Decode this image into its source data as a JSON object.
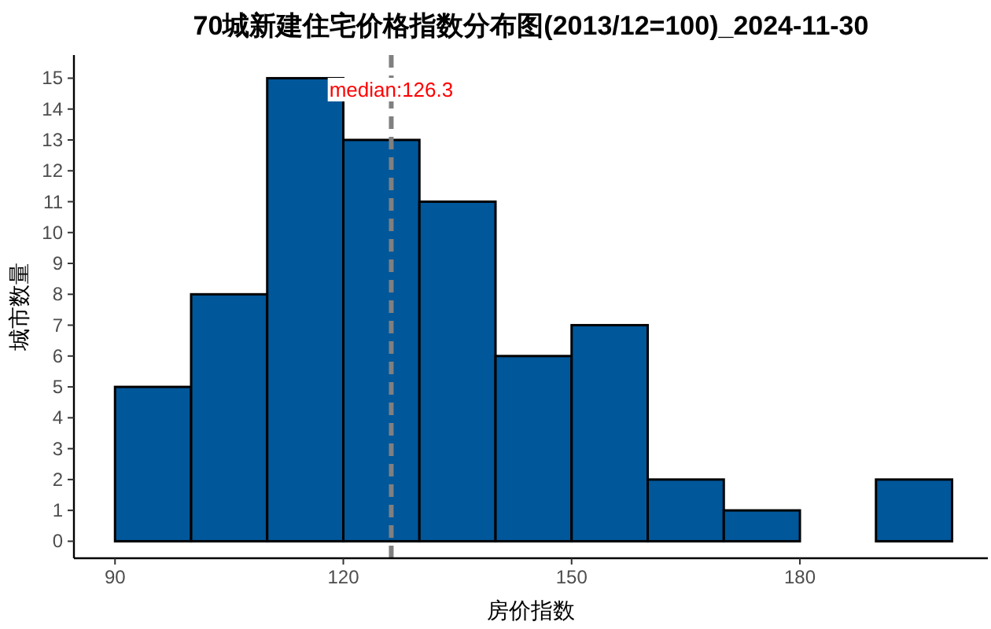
{
  "chart_data": {
    "type": "histogram",
    "title": "70城新建住宅价格指数分布图(2013/12=100)_2024-11-30",
    "xlabel": "房价指数",
    "ylabel": "城市数量",
    "bins": [
      90,
      100,
      110,
      120,
      130,
      140,
      150,
      160,
      170,
      180,
      190,
      200
    ],
    "values": [
      5,
      8,
      15,
      13,
      11,
      6,
      7,
      2,
      1,
      0,
      2
    ],
    "color": "#00579a",
    "xlim": [
      84.6,
      204.7
    ],
    "ylim": [
      -0.55,
      15.75
    ],
    "xticks": [
      90,
      120,
      150,
      180
    ],
    "yticks": [
      0,
      1,
      2,
      3,
      4,
      5,
      6,
      7,
      8,
      9,
      10,
      11,
      12,
      13,
      14,
      15
    ],
    "ref_lines": [
      {
        "axis": "x",
        "value": 126.3,
        "label": "median:126.3",
        "color": "#808080",
        "line_style": "dashed"
      }
    ],
    "grid": false
  }
}
